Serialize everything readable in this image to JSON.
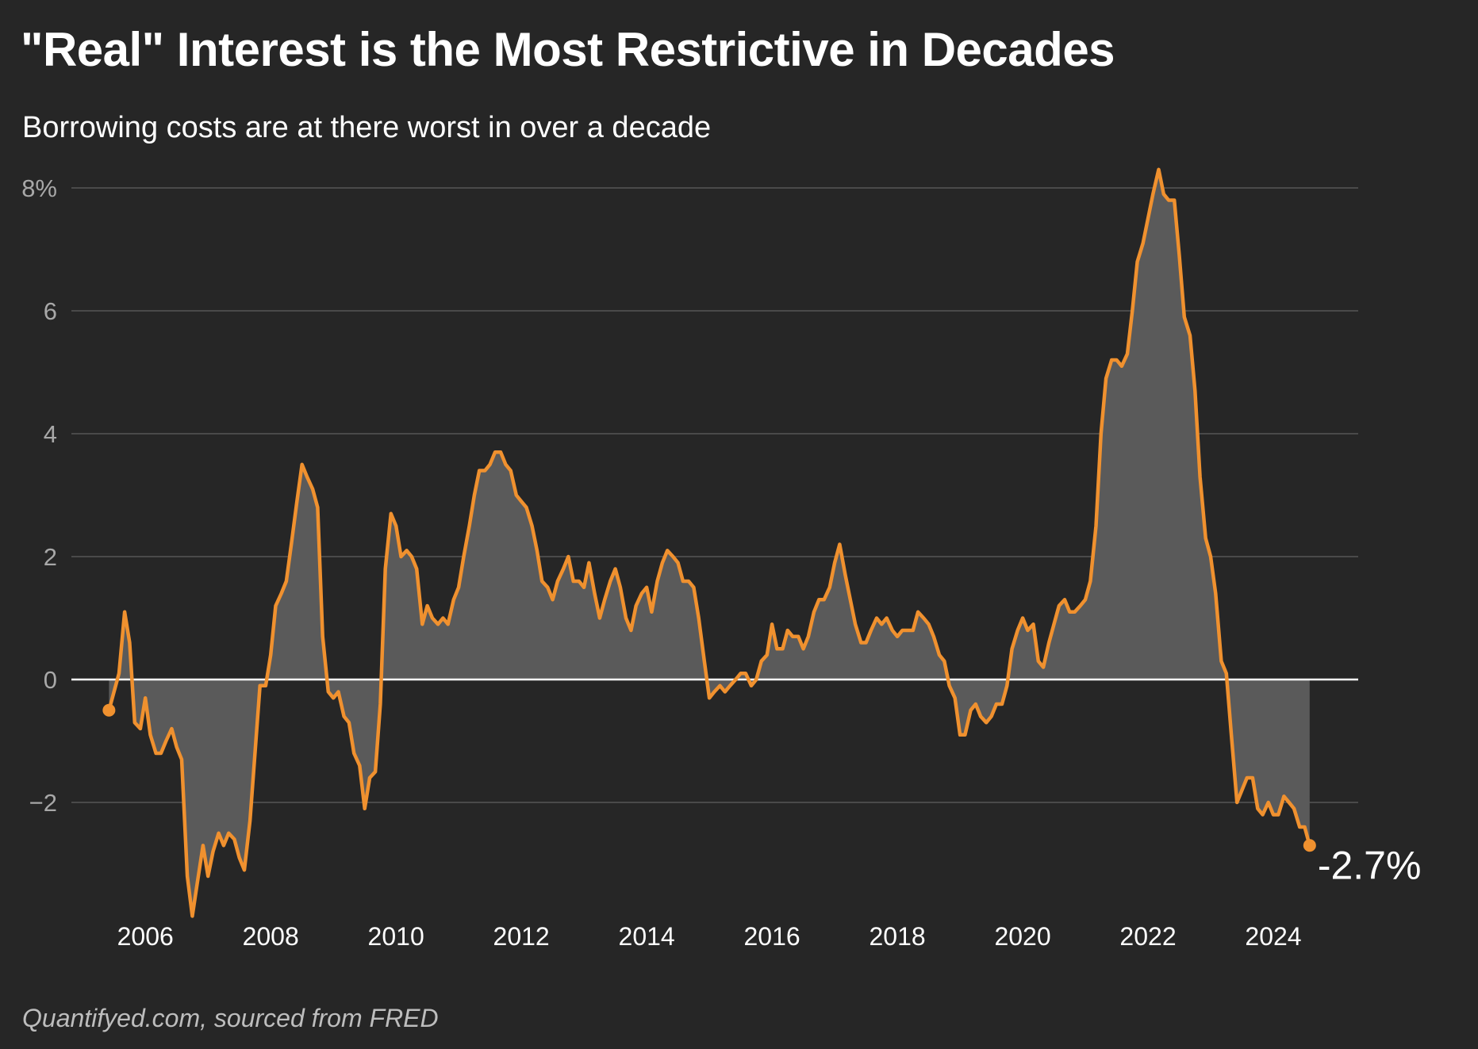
{
  "header": {
    "title": "\"Real\" Interest is the Most Restrictive in Decades",
    "subtitle": "Borrowing costs are at there worst in over a decade"
  },
  "footer": {
    "source": "Quantifyed.com, sourced from FRED"
  },
  "colors": {
    "background": "#262626",
    "line": "#f0912f",
    "area": "#5a5a5a",
    "grid": "#4a4a4a",
    "zero_line": "#ffffff"
  },
  "chart_data": {
    "type": "area",
    "title": "\"Real\" Interest is the Most Restrictive in Decades",
    "subtitle": "Borrowing costs are at there worst in over a decade",
    "xlabel": "",
    "ylabel": "",
    "xlim": [
      2005.2,
      2025.0
    ],
    "ylim": [
      -3.9,
      8.5
    ],
    "y_ticks": [
      {
        "value": 8,
        "label": "8%"
      },
      {
        "value": 6,
        "label": "6"
      },
      {
        "value": 4,
        "label": "4"
      },
      {
        "value": 2,
        "label": "2"
      },
      {
        "value": 0,
        "label": "0"
      },
      {
        "value": -2,
        "label": "−2"
      }
    ],
    "x_ticks": [
      {
        "value": 2006,
        "label": "2006"
      },
      {
        "value": 2008,
        "label": "2008"
      },
      {
        "value": 2010,
        "label": "2010"
      },
      {
        "value": 2012,
        "label": "2012"
      },
      {
        "value": 2014,
        "label": "2014"
      },
      {
        "value": 2016,
        "label": "2016"
      },
      {
        "value": 2018,
        "label": "2018"
      },
      {
        "value": 2020,
        "label": "2020"
      },
      {
        "value": 2022,
        "label": "2022"
      },
      {
        "value": 2024,
        "label": "2024"
      }
    ],
    "grid": true,
    "end_label": "-2.7%",
    "series": [
      {
        "points": [
          [
            2005.42,
            -0.5
          ],
          [
            2005.5,
            -0.2
          ],
          [
            2005.58,
            0.1
          ],
          [
            2005.67,
            1.1
          ],
          [
            2005.75,
            0.6
          ],
          [
            2005.83,
            -0.7
          ],
          [
            2005.92,
            -0.8
          ],
          [
            2006.0,
            -0.3
          ],
          [
            2006.08,
            -0.9
          ],
          [
            2006.17,
            -1.2
          ],
          [
            2006.25,
            -1.2
          ],
          [
            2006.33,
            -1.0
          ],
          [
            2006.42,
            -0.8
          ],
          [
            2006.5,
            -1.1
          ],
          [
            2006.58,
            -1.3
          ],
          [
            2006.67,
            -3.2
          ],
          [
            2006.75,
            -3.85
          ],
          [
            2006.83,
            -3.3
          ],
          [
            2006.92,
            -2.7
          ],
          [
            2007.0,
            -3.2
          ],
          [
            2007.08,
            -2.8
          ],
          [
            2007.17,
            -2.5
          ],
          [
            2007.25,
            -2.7
          ],
          [
            2007.33,
            -2.5
          ],
          [
            2007.42,
            -2.6
          ],
          [
            2007.5,
            -2.9
          ],
          [
            2007.58,
            -3.1
          ],
          [
            2007.67,
            -2.3
          ],
          [
            2007.75,
            -1.2
          ],
          [
            2007.83,
            -0.1
          ],
          [
            2007.92,
            -0.1
          ],
          [
            2008.0,
            0.4
          ],
          [
            2008.08,
            1.2
          ],
          [
            2008.17,
            1.4
          ],
          [
            2008.25,
            1.6
          ],
          [
            2008.33,
            2.2
          ],
          [
            2008.42,
            2.9
          ],
          [
            2008.5,
            3.5
          ],
          [
            2008.58,
            3.3
          ],
          [
            2008.67,
            3.1
          ],
          [
            2008.75,
            2.8
          ],
          [
            2008.83,
            0.7
          ],
          [
            2008.92,
            -0.2
          ],
          [
            2009.0,
            -0.3
          ],
          [
            2009.08,
            -0.2
          ],
          [
            2009.17,
            -0.6
          ],
          [
            2009.25,
            -0.7
          ],
          [
            2009.33,
            -1.2
          ],
          [
            2009.42,
            -1.4
          ],
          [
            2009.5,
            -2.1
          ],
          [
            2009.58,
            -1.6
          ],
          [
            2009.67,
            -1.5
          ],
          [
            2009.75,
            -0.4
          ],
          [
            2009.83,
            1.8
          ],
          [
            2009.92,
            2.7
          ],
          [
            2010.0,
            2.5
          ],
          [
            2010.08,
            2.0
          ],
          [
            2010.17,
            2.1
          ],
          [
            2010.25,
            2.0
          ],
          [
            2010.33,
            1.8
          ],
          [
            2010.42,
            0.9
          ],
          [
            2010.5,
            1.2
          ],
          [
            2010.58,
            1.0
          ],
          [
            2010.67,
            0.9
          ],
          [
            2010.75,
            1.0
          ],
          [
            2010.83,
            0.9
          ],
          [
            2010.92,
            1.3
          ],
          [
            2011.0,
            1.5
          ],
          [
            2011.08,
            2.0
          ],
          [
            2011.17,
            2.5
          ],
          [
            2011.25,
            3.0
          ],
          [
            2011.33,
            3.4
          ],
          [
            2011.42,
            3.4
          ],
          [
            2011.5,
            3.5
          ],
          [
            2011.58,
            3.7
          ],
          [
            2011.67,
            3.7
          ],
          [
            2011.75,
            3.5
          ],
          [
            2011.83,
            3.4
          ],
          [
            2011.92,
            3.0
          ],
          [
            2012.0,
            2.9
          ],
          [
            2012.08,
            2.8
          ],
          [
            2012.17,
            2.5
          ],
          [
            2012.25,
            2.1
          ],
          [
            2012.33,
            1.6
          ],
          [
            2012.42,
            1.5
          ],
          [
            2012.5,
            1.3
          ],
          [
            2012.58,
            1.6
          ],
          [
            2012.67,
            1.8
          ],
          [
            2012.75,
            2.0
          ],
          [
            2012.83,
            1.6
          ],
          [
            2012.92,
            1.6
          ],
          [
            2013.0,
            1.5
          ],
          [
            2013.08,
            1.9
          ],
          [
            2013.17,
            1.4
          ],
          [
            2013.25,
            1.0
          ],
          [
            2013.33,
            1.3
          ],
          [
            2013.42,
            1.6
          ],
          [
            2013.5,
            1.8
          ],
          [
            2013.58,
            1.5
          ],
          [
            2013.67,
            1.0
          ],
          [
            2013.75,
            0.8
          ],
          [
            2013.83,
            1.2
          ],
          [
            2013.92,
            1.4
          ],
          [
            2014.0,
            1.5
          ],
          [
            2014.08,
            1.1
          ],
          [
            2014.17,
            1.6
          ],
          [
            2014.25,
            1.9
          ],
          [
            2014.33,
            2.1
          ],
          [
            2014.42,
            2.0
          ],
          [
            2014.5,
            1.9
          ],
          [
            2014.58,
            1.6
          ],
          [
            2014.67,
            1.6
          ],
          [
            2014.75,
            1.5
          ],
          [
            2014.83,
            1.0
          ],
          [
            2014.92,
            0.3
          ],
          [
            2015.0,
            -0.3
          ],
          [
            2015.08,
            -0.2
          ],
          [
            2015.17,
            -0.1
          ],
          [
            2015.25,
            -0.2
          ],
          [
            2015.33,
            -0.1
          ],
          [
            2015.42,
            0.0
          ],
          [
            2015.5,
            0.1
          ],
          [
            2015.58,
            0.1
          ],
          [
            2015.67,
            -0.1
          ],
          [
            2015.75,
            0.0
          ],
          [
            2015.83,
            0.3
          ],
          [
            2015.92,
            0.4
          ],
          [
            2016.0,
            0.9
          ],
          [
            2016.08,
            0.5
          ],
          [
            2016.17,
            0.5
          ],
          [
            2016.25,
            0.8
          ],
          [
            2016.33,
            0.7
          ],
          [
            2016.42,
            0.7
          ],
          [
            2016.5,
            0.5
          ],
          [
            2016.58,
            0.7
          ],
          [
            2016.67,
            1.1
          ],
          [
            2016.75,
            1.3
          ],
          [
            2016.83,
            1.3
          ],
          [
            2016.92,
            1.5
          ],
          [
            2017.0,
            1.9
          ],
          [
            2017.08,
            2.2
          ],
          [
            2017.17,
            1.7
          ],
          [
            2017.25,
            1.3
          ],
          [
            2017.33,
            0.9
          ],
          [
            2017.42,
            0.6
          ],
          [
            2017.5,
            0.6
          ],
          [
            2017.58,
            0.8
          ],
          [
            2017.67,
            1.0
          ],
          [
            2017.75,
            0.9
          ],
          [
            2017.83,
            1.0
          ],
          [
            2017.92,
            0.8
          ],
          [
            2018.0,
            0.7
          ],
          [
            2018.08,
            0.8
          ],
          [
            2018.17,
            0.8
          ],
          [
            2018.25,
            0.8
          ],
          [
            2018.33,
            1.1
          ],
          [
            2018.42,
            1.0
          ],
          [
            2018.5,
            0.9
          ],
          [
            2018.58,
            0.7
          ],
          [
            2018.67,
            0.4
          ],
          [
            2018.75,
            0.3
          ],
          [
            2018.83,
            -0.1
          ],
          [
            2018.92,
            -0.3
          ],
          [
            2019.0,
            -0.9
          ],
          [
            2019.08,
            -0.9
          ],
          [
            2019.17,
            -0.5
          ],
          [
            2019.25,
            -0.4
          ],
          [
            2019.33,
            -0.6
          ],
          [
            2019.42,
            -0.7
          ],
          [
            2019.5,
            -0.6
          ],
          [
            2019.58,
            -0.4
          ],
          [
            2019.67,
            -0.4
          ],
          [
            2019.75,
            -0.1
          ],
          [
            2019.83,
            0.5
          ],
          [
            2019.92,
            0.8
          ],
          [
            2020.0,
            1.0
          ],
          [
            2020.08,
            0.8
          ],
          [
            2020.17,
            0.9
          ],
          [
            2020.25,
            0.3
          ],
          [
            2020.33,
            0.2
          ],
          [
            2020.42,
            0.6
          ],
          [
            2020.5,
            0.9
          ],
          [
            2020.58,
            1.2
          ],
          [
            2020.67,
            1.3
          ],
          [
            2020.75,
            1.1
          ],
          [
            2020.83,
            1.1
          ],
          [
            2020.92,
            1.2
          ],
          [
            2021.0,
            1.3
          ],
          [
            2021.08,
            1.6
          ],
          [
            2021.17,
            2.5
          ],
          [
            2021.25,
            4.0
          ],
          [
            2021.33,
            4.9
          ],
          [
            2021.42,
            5.2
          ],
          [
            2021.5,
            5.2
          ],
          [
            2021.58,
            5.1
          ],
          [
            2021.67,
            5.3
          ],
          [
            2021.75,
            6.0
          ],
          [
            2021.83,
            6.8
          ],
          [
            2021.92,
            7.1
          ],
          [
            2022.0,
            7.5
          ],
          [
            2022.08,
            7.9
          ],
          [
            2022.17,
            8.3
          ],
          [
            2022.25,
            7.9
          ],
          [
            2022.33,
            7.8
          ],
          [
            2022.42,
            7.8
          ],
          [
            2022.5,
            6.9
          ],
          [
            2022.58,
            5.9
          ],
          [
            2022.67,
            5.6
          ],
          [
            2022.75,
            4.7
          ],
          [
            2022.83,
            3.3
          ],
          [
            2022.92,
            2.3
          ],
          [
            2023.0,
            2.0
          ],
          [
            2023.08,
            1.4
          ],
          [
            2023.17,
            0.3
          ],
          [
            2023.25,
            0.1
          ],
          [
            2023.33,
            -0.9
          ],
          [
            2023.42,
            -2.0
          ],
          [
            2023.5,
            -1.8
          ],
          [
            2023.58,
            -1.6
          ],
          [
            2023.67,
            -1.6
          ],
          [
            2023.75,
            -2.1
          ],
          [
            2023.83,
            -2.2
          ],
          [
            2023.92,
            -2.0
          ],
          [
            2024.0,
            -2.2
          ],
          [
            2024.08,
            -2.2
          ],
          [
            2024.17,
            -1.9
          ],
          [
            2024.25,
            -2.0
          ],
          [
            2024.33,
            -2.1
          ],
          [
            2024.42,
            -2.4
          ],
          [
            2024.5,
            -2.4
          ],
          [
            2024.58,
            -2.7
          ]
        ]
      }
    ]
  }
}
